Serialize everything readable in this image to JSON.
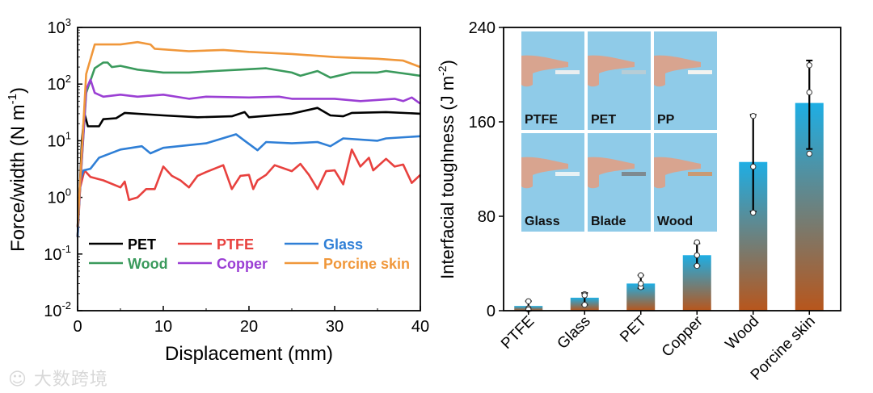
{
  "chart_data": [
    {
      "type": "line",
      "xlabel": "Displacement (mm)",
      "ylabel": "Force/width (N m",
      "ylabel_sup": "-1",
      "ylabel_end": ")",
      "xlim": [
        0,
        40
      ],
      "ylim": [
        0.01,
        1000
      ],
      "yscale": "log",
      "xticks": [
        "0",
        "10",
        "20",
        "30",
        "40"
      ],
      "yticks": [
        {
          "base": "10",
          "exp": "-2"
        },
        {
          "base": "10",
          "exp": "-1"
        },
        {
          "base": "10",
          "exp": "0"
        },
        {
          "base": "10",
          "exp": "1"
        },
        {
          "base": "10",
          "exp": "2"
        },
        {
          "base": "10",
          "exp": "3"
        }
      ],
      "legend_position": "bottom",
      "series": [
        {
          "name": "PET",
          "color": "#000000",
          "x": [
            0,
            0.5,
            0.8,
            1.2,
            2.5,
            3,
            4.5,
            5.5,
            10,
            14,
            18,
            19.5,
            20,
            25,
            28,
            29.5,
            31,
            32,
            36,
            40
          ],
          "y": [
            0.2,
            10,
            30,
            18,
            18,
            24,
            25,
            31,
            28,
            26,
            27,
            32,
            26,
            30,
            38,
            28,
            27,
            31,
            32,
            30
          ]
        },
        {
          "name": "PTFE",
          "color": "#e8413e",
          "x": [
            0,
            0.3,
            0.8,
            1.5,
            3,
            5,
            5.5,
            6,
            7,
            8,
            9,
            10,
            11,
            12,
            13,
            14,
            15,
            17,
            18,
            19,
            20,
            20.5,
            21,
            22,
            23,
            25,
            26,
            27,
            28,
            29,
            30,
            31,
            32,
            33,
            34,
            34.5,
            36,
            37,
            38,
            39,
            40
          ],
          "y": [
            0.2,
            1.5,
            3,
            2.3,
            2,
            1.5,
            1.9,
            0.9,
            1,
            1.4,
            1.4,
            3.5,
            2.4,
            2,
            1.5,
            2.4,
            2.8,
            3.7,
            1.4,
            2.4,
            2.5,
            1.4,
            2,
            2.5,
            3.7,
            2.9,
            3.9,
            2.5,
            1.4,
            2.9,
            3,
            1.7,
            7,
            3.5,
            5,
            3,
            4.8,
            3.5,
            3.8,
            1.8,
            2.5
          ]
        },
        {
          "name": "Glass",
          "color": "#2f7fd6",
          "x": [
            0,
            0.3,
            0.7,
            1.5,
            2.5,
            5,
            7.5,
            8.5,
            10,
            15,
            18.5,
            19.5,
            21,
            22,
            25,
            28,
            29.5,
            31,
            35,
            36,
            40
          ],
          "y": [
            0.2,
            2,
            3,
            3.2,
            5,
            7,
            8,
            6,
            7.5,
            9,
            13,
            10,
            6.8,
            9.5,
            9,
            9.5,
            8,
            11,
            10,
            11,
            12
          ]
        },
        {
          "name": "Wood",
          "color": "#3a9a5c",
          "x": [
            0,
            1,
            2,
            3,
            3.5,
            4,
            5,
            7,
            10,
            13,
            16,
            19,
            22,
            25,
            26,
            28,
            29.5,
            32,
            35,
            36,
            40
          ],
          "y": [
            0.3,
            70,
            190,
            240,
            240,
            200,
            210,
            180,
            160,
            160,
            170,
            180,
            190,
            160,
            140,
            170,
            130,
            160,
            160,
            170,
            140
          ]
        },
        {
          "name": "Copper",
          "color": "#9b3fd4",
          "x": [
            0,
            1,
            1.5,
            2,
            3,
            5,
            7,
            10,
            13,
            15,
            20,
            23.5,
            25,
            30,
            33,
            37,
            38,
            39,
            40
          ],
          "y": [
            0.3,
            80,
            120,
            70,
            60,
            65,
            60,
            65,
            55,
            60,
            58,
            60,
            55,
            55,
            50,
            55,
            50,
            58,
            45
          ]
        },
        {
          "name": "Porcine skin",
          "color": "#f0973a",
          "x": [
            0,
            1,
            2,
            5,
            7,
            8.5,
            9,
            13,
            17,
            20,
            25,
            30,
            35,
            38,
            40
          ],
          "y": [
            0.3,
            150,
            500,
            500,
            550,
            500,
            420,
            380,
            400,
            370,
            340,
            300,
            280,
            260,
            200
          ]
        }
      ]
    },
    {
      "type": "bar",
      "ylabel": "Interfacial toughness  (J m",
      "ylabel_sup": "-2",
      "ylabel_end": ")",
      "ylim": [
        0,
        240
      ],
      "yticks": [
        "0",
        "80",
        "160",
        "240"
      ],
      "categories": [
        "PTFE",
        "Glass",
        "PET",
        "Copper",
        "Wood",
        "Porcine skin"
      ],
      "values": [
        4,
        11,
        23,
        47,
        126,
        176
      ],
      "error_low": [
        0,
        5,
        19,
        38,
        84,
        137
      ],
      "error_high": [
        8,
        15,
        30,
        57,
        166,
        212
      ],
      "points": [
        [
          8,
          2,
          1
        ],
        [
          14,
          5,
          13
        ],
        [
          30,
          20,
          23
        ],
        [
          58,
          47,
          38
        ],
        [
          165,
          122,
          83
        ],
        [
          208,
          185,
          133
        ]
      ],
      "gradient": {
        "top": "#1eaee4",
        "bottom": "#b8561c"
      },
      "inset_labels": [
        "PTFE",
        "PET",
        "PP",
        "Glass",
        "Blade",
        "Wood"
      ]
    }
  ],
  "watermark": "大数跨境"
}
